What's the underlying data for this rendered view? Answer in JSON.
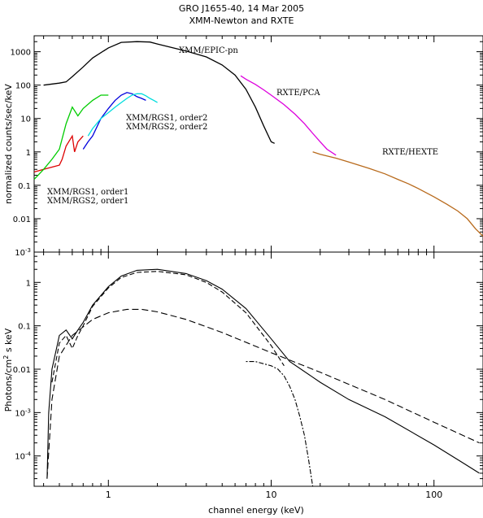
{
  "figure": {
    "title_line1": "GRO J1655-40, 14 Mar 2005",
    "title_line2": "XMM-Newton and RXTE"
  },
  "chart_data": [
    {
      "type": "line",
      "panel": "top",
      "xscale": "log",
      "yscale": "log",
      "xlim": [
        0.35,
        200
      ],
      "ylim": [
        0.001,
        3000
      ],
      "xlabel": "",
      "ylabel": "normalized counts/sec/keV",
      "y_ticks": [
        {
          "v": 1000,
          "label": "1000"
        },
        {
          "v": 100,
          "label": "100"
        },
        {
          "v": 10,
          "label": "10"
        },
        {
          "v": 1,
          "label": "1"
        },
        {
          "v": 0.1,
          "label": "0.1"
        },
        {
          "v": 0.01,
          "label": "0.01"
        },
        {
          "v": 0.001,
          "label": "10",
          "sup": "-3"
        }
      ],
      "series": [
        {
          "name": "XMM/EPIC-pn",
          "color": "#000000",
          "x": [
            0.4,
            0.5,
            0.55,
            0.6,
            0.7,
            0.8,
            1.0,
            1.2,
            1.5,
            1.8,
            2.0,
            2.5,
            3.0,
            4.0,
            5.0,
            6.0,
            7.0,
            8.0,
            9.0,
            10.0,
            10.5
          ],
          "y": [
            100,
            115,
            125,
            180,
            350,
            650,
            1300,
            1900,
            2000,
            1950,
            1700,
            1300,
            1050,
            700,
            400,
            200,
            75,
            22,
            6,
            2,
            1.8
          ]
        },
        {
          "name": "RXTE/PCA",
          "color": "#dd00dd",
          "x": [
            6.5,
            7,
            8,
            9,
            10,
            12,
            14,
            16,
            18,
            20,
            22,
            25
          ],
          "y": [
            190,
            150,
            105,
            72,
            50,
            26,
            13.5,
            7,
            3.6,
            2,
            1.2,
            0.8
          ]
        },
        {
          "name": "RXTE/HEXTE",
          "color": "#b86a1c",
          "x": [
            18,
            20,
            25,
            30,
            40,
            50,
            60,
            70,
            80,
            100,
            120,
            140,
            160,
            180,
            200
          ],
          "y": [
            1.0,
            0.85,
            0.65,
            0.5,
            0.32,
            0.22,
            0.15,
            0.11,
            0.08,
            0.045,
            0.027,
            0.017,
            0.01,
            0.005,
            0.003
          ]
        },
        {
          "name": "XMM/RGS1, order1",
          "color": "#dd0000",
          "x": [
            0.35,
            0.4,
            0.45,
            0.5,
            0.52,
            0.55,
            0.6,
            0.62,
            0.65,
            0.7
          ],
          "y": [
            0.25,
            0.3,
            0.35,
            0.4,
            0.6,
            1.5,
            3,
            1.0,
            2.0,
            3.0
          ]
        },
        {
          "name": "XMM/RGS2, order1",
          "color": "#00cc00",
          "x": [
            0.35,
            0.4,
            0.45,
            0.5,
            0.55,
            0.6,
            0.65,
            0.7,
            0.8,
            0.9,
            1.0
          ],
          "y": [
            0.15,
            0.3,
            0.6,
            1.2,
            7,
            22,
            12,
            20,
            35,
            50,
            50
          ]
        },
        {
          "name": "XMM/RGS1, order2",
          "color": "#0000dd",
          "x": [
            0.7,
            0.75,
            0.8,
            0.9,
            1.0,
            1.1,
            1.2,
            1.3,
            1.4,
            1.5,
            1.6,
            1.7
          ],
          "y": [
            1.2,
            2.0,
            3.0,
            10,
            20,
            35,
            50,
            60,
            55,
            45,
            40,
            35
          ]
        },
        {
          "name": "XMM/RGS2, order2",
          "color": "#00dddd",
          "x": [
            0.75,
            0.8,
            0.9,
            1.0,
            1.1,
            1.2,
            1.3,
            1.4,
            1.5,
            1.6,
            1.7,
            1.8,
            1.9,
            2.0
          ],
          "y": [
            3,
            5,
            10,
            15,
            22,
            30,
            40,
            50,
            55,
            55,
            48,
            40,
            35,
            30
          ]
        }
      ],
      "annotations": [
        {
          "text": "XMM/EPIC-pn",
          "color": "#000000"
        },
        {
          "text": "RXTE/PCA",
          "color": "#dd00dd"
        },
        {
          "text": "RXTE/HEXTE",
          "color": "#b86a1c"
        },
        {
          "text": "XMM/RGS1, order2",
          "color": "#0000dd"
        },
        {
          "text": "XMM/RGS2, order2",
          "color": "#00cccc"
        },
        {
          "text": "XMM/RGS1, order1",
          "color": "#dd0000"
        },
        {
          "text": "XMM/RGS2, order1",
          "color": "#00cc00"
        }
      ]
    },
    {
      "type": "line",
      "panel": "bottom",
      "xscale": "log",
      "yscale": "log",
      "xlim": [
        0.35,
        200
      ],
      "ylim": [
        2e-05,
        5
      ],
      "xlabel": "channel energy (keV)",
      "ylabel": "Photons/cm",
      "ylabel_sup": "2",
      "ylabel_tail": " s keV",
      "x_ticks": [
        {
          "v": 1,
          "label": "1"
        },
        {
          "v": 10,
          "label": "10"
        },
        {
          "v": 100,
          "label": "100"
        }
      ],
      "y_ticks": [
        {
          "v": 1,
          "label": "1"
        },
        {
          "v": 0.1,
          "label": "0.1"
        },
        {
          "v": 0.01,
          "label": "0.01"
        },
        {
          "v": 0.001,
          "label": "10",
          "sup": "-3"
        },
        {
          "v": 0.0001,
          "label": "10",
          "sup": "-4"
        }
      ],
      "series": [
        {
          "color": "#000000",
          "dash": "",
          "x": [
            0.42,
            0.43,
            0.45,
            0.5,
            0.55,
            0.6,
            0.65,
            0.7,
            0.8,
            1.0,
            1.2,
            1.5,
            2.0,
            3.0,
            4.0,
            5.0,
            7.0,
            10.0,
            13.0,
            20.0,
            30.0,
            50.0,
            100.0,
            150.0,
            190.0
          ],
          "y": [
            3e-05,
            0.001,
            0.01,
            0.06,
            0.08,
            0.05,
            0.08,
            0.12,
            0.3,
            0.8,
            1.4,
            1.9,
            2.0,
            1.6,
            1.1,
            0.7,
            0.25,
            0.05,
            0.015,
            0.005,
            0.002,
            0.0008,
            0.00018,
            7e-05,
            4e-05
          ]
        },
        {
          "color": "#000000",
          "dash": "6 3",
          "x": [
            0.45,
            0.5,
            0.55,
            0.6,
            0.65,
            0.7,
            0.8,
            1.0,
            1.2,
            1.5,
            2.0,
            3.0,
            4.0,
            5.0,
            7.0,
            10.0,
            12.0
          ],
          "y": [
            0.005,
            0.04,
            0.06,
            0.03,
            0.06,
            0.1,
            0.28,
            0.75,
            1.3,
            1.7,
            1.8,
            1.5,
            1.0,
            0.6,
            0.2,
            0.035,
            0.012
          ]
        },
        {
          "color": "#000000",
          "dash": "8 4",
          "x": [
            0.42,
            0.45,
            0.5,
            0.6,
            0.8,
            1.0,
            1.3,
            1.6,
            2.0,
            3.0,
            5.0,
            10.0,
            20.0,
            50.0,
            100.0,
            190.0
          ],
          "y": [
            3e-05,
            0.002,
            0.02,
            0.06,
            0.14,
            0.2,
            0.24,
            0.24,
            0.21,
            0.14,
            0.07,
            0.024,
            0.0085,
            0.002,
            0.0006,
            0.0002
          ]
        },
        {
          "color": "#000000",
          "dash": "2 2 6 2",
          "x": [
            7.0,
            8.0,
            10.0,
            11.0,
            12.0,
            13.0,
            14.0,
            15.0,
            16.0,
            17.0,
            18.0
          ],
          "y": [
            0.015,
            0.015,
            0.012,
            0.01,
            0.007,
            0.004,
            0.002,
            0.0008,
            0.0003,
            8e-05,
            2e-05
          ]
        }
      ]
    }
  ]
}
